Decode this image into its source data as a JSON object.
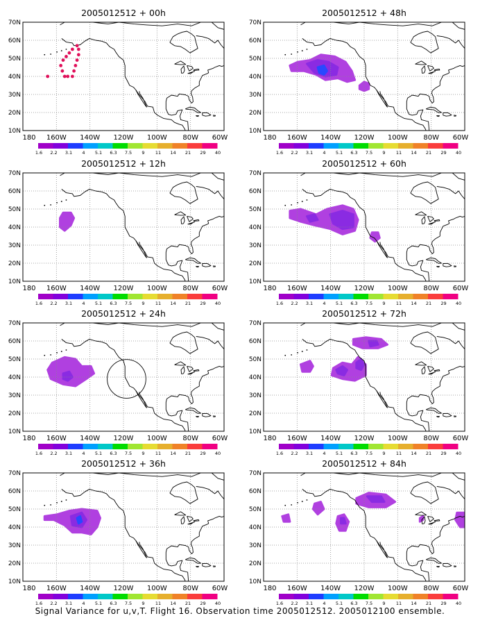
{
  "figure": {
    "caption": "Signal Variance for u,v,T. Flight 16. Observation time 2005012512. 2005012100 ensemble."
  },
  "colorbar": {
    "labels": [
      "1.6",
      "2.2",
      "3.1",
      "4",
      "5.1",
      "6.3",
      "7.5",
      "9",
      "11",
      "14",
      "21",
      "29",
      "40"
    ],
    "colors": [
      "#a000c8",
      "#8200dc",
      "#1e3cff",
      "#00a0ff",
      "#00c8c8",
      "#00dc00",
      "#a0e632",
      "#e6dc32",
      "#e6af2d",
      "#f08228",
      "#fa3c3c",
      "#f00082"
    ]
  },
  "colors": {
    "contour_light": "#b040e0",
    "contour_dark": "#8a2be2",
    "contour_core": "#2848ff",
    "flight_track": "#e0105a"
  },
  "chart_data": [
    {
      "type": "map",
      "title": "2005012512 + 00h",
      "xlim": [
        -190,
        -60
      ],
      "ylim": [
        10,
        70
      ],
      "x_ticks": [
        "180",
        "160W",
        "140W",
        "120W",
        "100W",
        "80W",
        "60W"
      ],
      "y_ticks": [
        "10N",
        "20N",
        "30N",
        "40N",
        "50N",
        "60N",
        "70N"
      ],
      "grid": "dotted",
      "regions": [],
      "track": [
        [
          -163,
          40
        ],
        [
          -164.5,
          43
        ],
        [
          -165.5,
          46
        ],
        [
          -164,
          49
        ],
        [
          -162,
          51
        ],
        [
          -160,
          53
        ],
        [
          -158,
          55
        ],
        [
          -155,
          57
        ],
        [
          -154,
          55
        ],
        [
          -154,
          52
        ],
        [
          -155,
          49
        ],
        [
          -156,
          46
        ],
        [
          -157,
          43
        ],
        [
          -158,
          40
        ],
        [
          -161,
          40
        ],
        [
          -174,
          40
        ]
      ],
      "circles": []
    },
    {
      "type": "map",
      "title": "2005012512 + 48h",
      "xlim": [
        -190,
        -60
      ],
      "ylim": [
        10,
        70
      ],
      "x_ticks": [
        "180",
        "160W",
        "140W",
        "120W",
        "100W",
        "80W",
        "60W"
      ],
      "y_ticks": [
        "10N",
        "20N",
        "30N",
        "40N",
        "50N",
        "60N",
        "70N"
      ],
      "grid": "dotted",
      "regions": [
        {
          "level": 1,
          "pts": [
            [
              -173,
              46
            ],
            [
              -168,
              48
            ],
            [
              -160,
              49
            ],
            [
              -153,
              52
            ],
            [
              -144,
              51
            ],
            [
              -137,
              48
            ],
            [
              -133,
              43
            ],
            [
              -131,
              38
            ],
            [
              -136,
              37
            ],
            [
              -142,
              39
            ],
            [
              -150,
              38
            ],
            [
              -156,
              41
            ],
            [
              -164,
              43
            ],
            [
              -172,
              43
            ]
          ]
        },
        {
          "level": 1,
          "pts": [
            [
              -128,
              35
            ],
            [
              -125,
              37
            ],
            [
              -122,
              36
            ],
            [
              -122,
              33
            ],
            [
              -125,
              32
            ],
            [
              -128,
              33
            ]
          ]
        },
        {
          "level": 2,
          "pts": [
            [
              -162,
              47
            ],
            [
              -155,
              49
            ],
            [
              -148,
              48
            ],
            [
              -142,
              45
            ],
            [
              -143,
              41
            ],
            [
              -150,
              40
            ],
            [
              -157,
              42
            ]
          ]
        },
        {
          "level": 3,
          "pts": [
            [
              -155,
              45
            ],
            [
              -151,
              46
            ],
            [
              -149,
              43
            ],
            [
              -151,
              41
            ],
            [
              -154,
              42
            ]
          ]
        }
      ],
      "track": [],
      "circles": []
    },
    {
      "type": "map",
      "title": "2005012512 + 12h",
      "xlim": [
        -190,
        -60
      ],
      "ylim": [
        10,
        70
      ],
      "x_ticks": [
        "180",
        "160W",
        "140W",
        "120W",
        "100W",
        "80W",
        "60W"
      ],
      "y_ticks": [
        "10N",
        "20N",
        "30N",
        "40N",
        "50N",
        "60N",
        "70N"
      ],
      "grid": "dotted",
      "regions": [
        {
          "level": 1,
          "pts": [
            [
              -166,
              45
            ],
            [
              -164,
              48
            ],
            [
              -159,
              48
            ],
            [
              -157,
              45
            ],
            [
              -159,
              41
            ],
            [
              -163,
              38
            ],
            [
              -166,
              40
            ]
          ]
        }
      ],
      "track": [],
      "circles": []
    },
    {
      "type": "map",
      "title": "2005012512 + 60h",
      "xlim": [
        -190,
        -60
      ],
      "ylim": [
        10,
        70
      ],
      "x_ticks": [
        "180",
        "160W",
        "140W",
        "120W",
        "100W",
        "80W",
        "60W"
      ],
      "y_ticks": [
        "10N",
        "20N",
        "30N",
        "40N",
        "50N",
        "60N",
        "70N"
      ],
      "grid": "dotted",
      "regions": [
        {
          "level": 1,
          "pts": [
            [
              -173,
              49
            ],
            [
              -166,
              50
            ],
            [
              -156,
              47
            ],
            [
              -149,
              50
            ],
            [
              -139,
              52
            ],
            [
              -132,
              50
            ],
            [
              -129,
              44
            ],
            [
              -131,
              38
            ],
            [
              -139,
              36
            ],
            [
              -147,
              39
            ],
            [
              -157,
              41
            ],
            [
              -166,
              43
            ],
            [
              -173,
              45
            ]
          ]
        },
        {
          "level": 1,
          "pts": [
            [
              -120,
              37
            ],
            [
              -116,
              37
            ],
            [
              -115,
              34
            ],
            [
              -118,
              32
            ],
            [
              -121,
              34
            ]
          ]
        },
        {
          "level": 2,
          "pts": [
            [
              -147,
              47
            ],
            [
              -139,
              49
            ],
            [
              -132,
              47
            ],
            [
              -132,
              40
            ],
            [
              -139,
              39
            ],
            [
              -145,
              42
            ]
          ]
        },
        {
          "level": 2,
          "pts": [
            [
              -162,
              46
            ],
            [
              -157,
              47
            ],
            [
              -155,
              44
            ],
            [
              -160,
              43
            ]
          ]
        }
      ],
      "track": [],
      "circles": []
    },
    {
      "type": "map",
      "title": "2005012512 + 24h",
      "xlim": [
        -190,
        -60
      ],
      "ylim": [
        10,
        70
      ],
      "x_ticks": [
        "180",
        "160W",
        "140W",
        "120W",
        "100W",
        "80W",
        "60W"
      ],
      "y_ticks": [
        "10N",
        "20N",
        "30N",
        "40N",
        "50N",
        "60N",
        "70N"
      ],
      "grid": "dotted",
      "regions": [
        {
          "level": 1,
          "pts": [
            [
              -174,
              44
            ],
            [
              -171,
              48
            ],
            [
              -163,
              51
            ],
            [
              -156,
              50
            ],
            [
              -152,
              46
            ],
            [
              -146,
              46
            ],
            [
              -144,
              42
            ],
            [
              -149,
              39
            ],
            [
              -156,
              35
            ],
            [
              -164,
              36
            ],
            [
              -172,
              39
            ]
          ]
        },
        {
          "level": 2,
          "pts": [
            [
              -164,
              42
            ],
            [
              -160,
              43
            ],
            [
              -158,
              40
            ],
            [
              -161,
              38
            ],
            [
              -164,
              39
            ]
          ]
        }
      ],
      "track": [],
      "circles": [
        {
          "cx": -123,
          "cy": 39,
          "rx": 12.5,
          "ry": 10.5
        }
      ]
    },
    {
      "type": "map",
      "title": "2005012512 + 72h",
      "xlim": [
        -190,
        -60
      ],
      "ylim": [
        10,
        70
      ],
      "x_ticks": [
        "180",
        "160W",
        "140W",
        "120W",
        "100W",
        "80W",
        "60W"
      ],
      "y_ticks": [
        "10N",
        "20N",
        "30N",
        "40N",
        "50N",
        "60N",
        "70N"
      ],
      "grid": "dotted",
      "regions": [
        {
          "level": 1,
          "pts": [
            [
              -132,
              61
            ],
            [
              -124,
              62
            ],
            [
              -114,
              61
            ],
            [
              -110,
              58
            ],
            [
              -116,
              56
            ],
            [
              -126,
              56
            ],
            [
              -132,
              58
            ]
          ]
        },
        {
          "level": 1,
          "pts": [
            [
              -166,
              47
            ],
            [
              -160,
              49
            ],
            [
              -158,
              46
            ],
            [
              -160,
              43
            ],
            [
              -165,
              43
            ]
          ]
        },
        {
          "level": 1,
          "pts": [
            [
              -145,
              45
            ],
            [
              -139,
              48
            ],
            [
              -133,
              47
            ],
            [
              -129,
              51
            ],
            [
              -124,
              47
            ],
            [
              -124,
              41
            ],
            [
              -131,
              38
            ],
            [
              -139,
              39
            ],
            [
              -146,
              41
            ]
          ]
        },
        {
          "level": 2,
          "pts": [
            [
              -143,
              44
            ],
            [
              -139,
              46
            ],
            [
              -136,
              44
            ],
            [
              -138,
              41
            ],
            [
              -142,
              42
            ]
          ]
        },
        {
          "level": 2,
          "pts": [
            [
              -130,
              48
            ],
            [
              -127,
              50
            ],
            [
              -125,
              47
            ],
            [
              -127,
              44
            ],
            [
              -130,
              45
            ]
          ]
        },
        {
          "level": 2,
          "pts": [
            [
              -122,
              60
            ],
            [
              -117,
              60
            ],
            [
              -116,
              58
            ],
            [
              -121,
              57
            ]
          ]
        }
      ],
      "track": [],
      "circles": []
    },
    {
      "type": "map",
      "title": "2005012512 + 36h",
      "xlim": [
        -190,
        -60
      ],
      "ylim": [
        10,
        70
      ],
      "x_ticks": [
        "180",
        "160W",
        "140W",
        "120W",
        "100W",
        "80W",
        "60W"
      ],
      "y_ticks": [
        "10N",
        "20N",
        "30N",
        "40N",
        "50N",
        "60N",
        "70N"
      ],
      "grid": "dotted",
      "regions": [
        {
          "level": 1,
          "pts": [
            [
              -176,
              46
            ],
            [
              -168,
              47
            ],
            [
              -160,
              49
            ],
            [
              -152,
              50
            ],
            [
              -142,
              49
            ],
            [
              -140,
              45
            ],
            [
              -142,
              40
            ],
            [
              -146,
              36
            ],
            [
              -152,
              37
            ],
            [
              -158,
              37
            ],
            [
              -163,
              41
            ],
            [
              -170,
              44
            ],
            [
              -176,
              44
            ]
          ]
        },
        {
          "level": 2,
          "pts": [
            [
              -159,
              46
            ],
            [
              -152,
              48
            ],
            [
              -149,
              44
            ],
            [
              -152,
              40
            ],
            [
              -158,
              41
            ]
          ]
        },
        {
          "level": 3,
          "pts": [
            [
              -155,
              45
            ],
            [
              -153,
              46
            ],
            [
              -152,
              43
            ],
            [
              -154,
              42
            ]
          ]
        }
      ],
      "track": [],
      "circles": []
    },
    {
      "type": "map",
      "title": "2005012512 + 84h",
      "xlim": [
        -190,
        -60
      ],
      "ylim": [
        10,
        70
      ],
      "x_ticks": [
        "180",
        "160W",
        "140W",
        "120W",
        "100W",
        "80W",
        "60W"
      ],
      "y_ticks": [
        "10N",
        "20N",
        "30N",
        "40N",
        "50N",
        "60N",
        "70N"
      ],
      "grid": "dotted",
      "regions": [
        {
          "level": 1,
          "pts": [
            [
              -130,
              56
            ],
            [
              -122,
              59
            ],
            [
              -111,
              58
            ],
            [
              -105,
              54
            ],
            [
              -111,
              51
            ],
            [
              -122,
              51
            ],
            [
              -130,
              53
            ]
          ]
        },
        {
          "level": 1,
          "pts": [
            [
              -157,
              53
            ],
            [
              -153,
              54
            ],
            [
              -151,
              50
            ],
            [
              -155,
              47
            ],
            [
              -158,
              50
            ]
          ]
        },
        {
          "level": 1,
          "pts": [
            [
              -142,
              46
            ],
            [
              -138,
              47
            ],
            [
              -135,
              43
            ],
            [
              -137,
              38
            ],
            [
              -141,
              38
            ],
            [
              -143,
              42
            ]
          ]
        },
        {
          "level": 1,
          "pts": [
            [
              -178,
              46
            ],
            [
              -174,
              47
            ],
            [
              -173,
              43
            ],
            [
              -177,
              43
            ]
          ]
        },
        {
          "level": 1,
          "pts": [
            [
              -89,
              45
            ],
            [
              -87,
              46
            ],
            [
              -87,
              44
            ],
            [
              -89,
              43
            ]
          ]
        },
        {
          "level": 1,
          "pts": [
            [
              -65,
              48
            ],
            [
              -60,
              48
            ],
            [
              -60,
              40
            ],
            [
              -63,
              40
            ],
            [
              -66,
              44
            ]
          ]
        },
        {
          "level": 2,
          "pts": [
            [
              -123,
              57
            ],
            [
              -114,
              57
            ],
            [
              -112,
              54
            ],
            [
              -120,
              54
            ]
          ]
        },
        {
          "level": 2,
          "pts": [
            [
              -140,
              45
            ],
            [
              -138,
              45
            ],
            [
              -137,
              42
            ],
            [
              -140,
              42
            ]
          ]
        }
      ],
      "track": [],
      "circles": []
    }
  ]
}
